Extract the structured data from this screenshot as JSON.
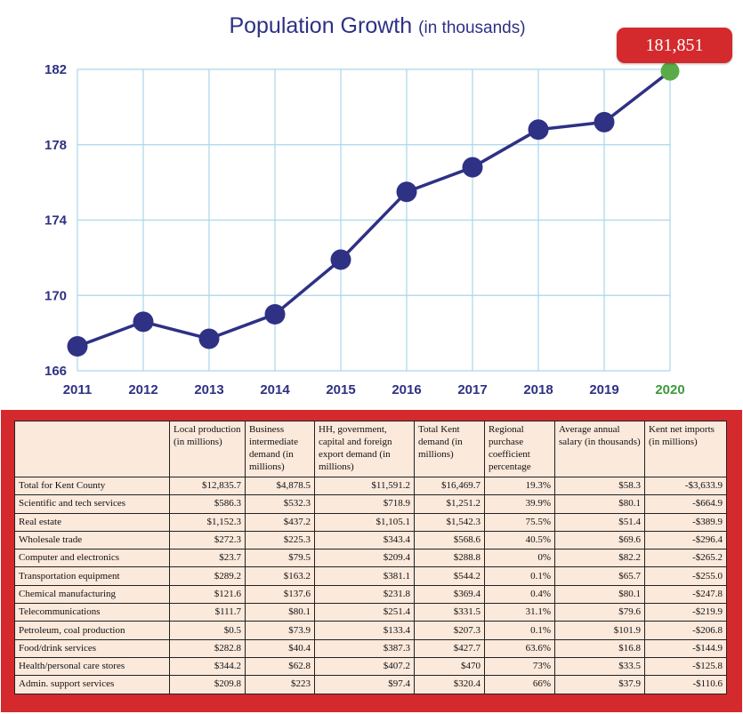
{
  "chart_data": {
    "type": "line",
    "title": "Population Growth",
    "subtitle": "(in thousands)",
    "x": [
      "2011",
      "2012",
      "2013",
      "2014",
      "2015",
      "2016",
      "2017",
      "2018",
      "2019",
      "2020"
    ],
    "values": [
      167.3,
      168.6,
      167.7,
      169.0,
      171.9,
      175.5,
      176.8,
      178.8,
      179.2,
      181.9
    ],
    "ylim": [
      166,
      182
    ],
    "yticks": [
      "166",
      "170",
      "174",
      "178",
      "182"
    ],
    "grid": true,
    "callout": "181,851",
    "colors": {
      "line": "#2e3184",
      "point": "#2e3184",
      "last_point": "#5aab47",
      "last_tick": "#3c9a3c",
      "grid": "#a9d6ea",
      "callout_bg": "#d42a2e"
    }
  },
  "table": {
    "headers": [
      "",
      "Local production (in millions)",
      "Business intermediate demand (in millions)",
      "HH, government, capital and foreign export demand (in millions)",
      "Total Kent demand (in millions)",
      "Regional purchase coefficient percentage",
      "Average annual salary (in thousands)",
      "Kent net imports (in millions)"
    ],
    "rows": [
      [
        "Total for Kent County",
        "$12,835.7",
        "$4,878.5",
        "$11,591.2",
        "$16,469.7",
        "19.3%",
        "$58.3",
        "-$3,633.9"
      ],
      [
        "Scientific and tech services",
        "$586.3",
        "$532.3",
        "$718.9",
        "$1,251.2",
        "39.9%",
        "$80.1",
        "-$664.9"
      ],
      [
        "Real estate",
        "$1,152.3",
        "$437.2",
        "$1,105.1",
        "$1,542.3",
        "75.5%",
        "$51.4",
        "-$389.9"
      ],
      [
        "Wholesale trade",
        "$272.3",
        "$225.3",
        "$343.4",
        "$568.6",
        "40.5%",
        "$69.6",
        "-$296.4"
      ],
      [
        "Computer and electronics",
        "$23.7",
        "$79.5",
        "$209.4",
        "$288.8",
        "0%",
        "$82.2",
        "-$265.2"
      ],
      [
        "Transportation equipment",
        "$289.2",
        "$163.2",
        "$381.1",
        "$544.2",
        "0.1%",
        "$65.7",
        "-$255.0"
      ],
      [
        "Chemical manufacturing",
        "$121.6",
        "$137.6",
        "$231.8",
        "$369.4",
        "0.4%",
        "$80.1",
        "-$247.8"
      ],
      [
        "Telecommunications",
        "$111.7",
        "$80.1",
        "$251.4",
        "$331.5",
        "31.1%",
        "$79.6",
        "-$219.9"
      ],
      [
        "Petroleum, coal production",
        "$0.5",
        "$73.9",
        "$133.4",
        "$207.3",
        "0.1%",
        "$101.9",
        "-$206.8"
      ],
      [
        "Food/drink services",
        "$282.8",
        "$40.4",
        "$387.3",
        "$427.7",
        "63.6%",
        "$16.8",
        "-$144.9"
      ],
      [
        "Health/personal care stores",
        "$344.2",
        "$62.8",
        "$407.2",
        "$470",
        "73%",
        "$33.5",
        "-$125.8"
      ],
      [
        "Admin. support services",
        "$209.8",
        "$223",
        "$97.4",
        "$320.4",
        "66%",
        "$37.9",
        "-$110.6"
      ]
    ]
  }
}
